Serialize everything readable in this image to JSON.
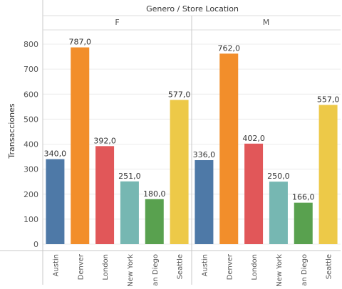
{
  "chart_data": {
    "type": "bar",
    "title": "Genero / Store Location",
    "ylabel": "Transacciones",
    "ylim": [
      0,
      850
    ],
    "yticks": [
      0,
      100,
      200,
      300,
      400,
      500,
      600,
      700,
      800
    ],
    "grid": true,
    "categories": [
      "Austin",
      "Denver",
      "London",
      "New York",
      "San Diego",
      "Seattle"
    ],
    "category_colors": [
      "#4e79a7",
      "#f28e2b",
      "#e15759",
      "#76b7b2",
      "#59a14f",
      "#edc948"
    ],
    "panels": [
      {
        "name": "F",
        "values": [
          340.0,
          787.0,
          392.0,
          251.0,
          180.0,
          577.0
        ]
      },
      {
        "name": "M",
        "values": [
          336.0,
          762.0,
          402.0,
          250.0,
          166.0,
          557.0
        ]
      }
    ]
  }
}
